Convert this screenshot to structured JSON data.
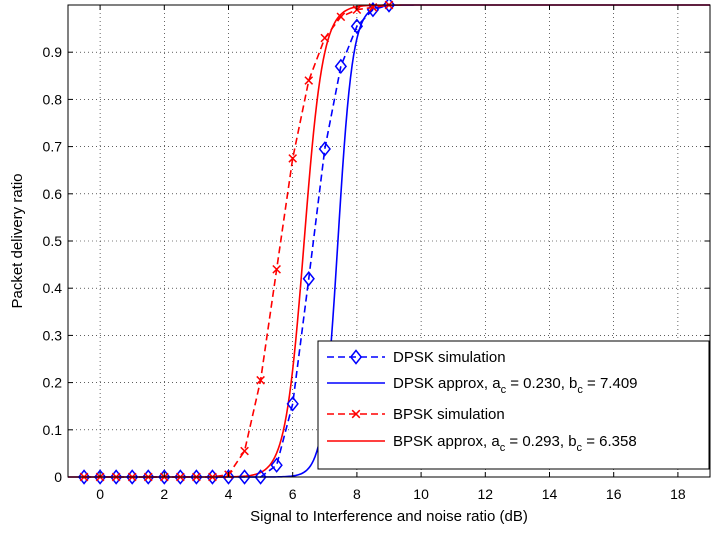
{
  "chart_data": {
    "type": "line",
    "title": "",
    "xlabel": "Signal to Interference and noise ratio (dB)",
    "ylabel": "Packet delivery ratio",
    "xlim": [
      -1,
      19
    ],
    "ylim": [
      0,
      1
    ],
    "xticks": [
      0,
      2,
      4,
      6,
      8,
      10,
      12,
      14,
      16,
      18
    ],
    "yticks": [
      0,
      0.1,
      0.2,
      0.3,
      0.4,
      0.5,
      0.6,
      0.7,
      0.8,
      0.9
    ],
    "ytick_labels": [
      "0",
      "0.1",
      "0.2",
      "0.3",
      "0.4",
      "0.5",
      "0.6",
      "0.7",
      "0.8",
      "0.9"
    ],
    "grid": true,
    "legend_position": "bottom-right",
    "series": [
      {
        "name": "DPSK simulation",
        "color": "#0000ff",
        "line": "dashed",
        "marker": "diamond",
        "x": [
          -0.5,
          0,
          0.5,
          1,
          1.5,
          2,
          2.5,
          3,
          3.5,
          4,
          4.5,
          5,
          5.5,
          6,
          6.5,
          7,
          7.5,
          8,
          8.5,
          9
        ],
        "y": [
          0,
          0,
          0,
          0,
          0,
          0,
          0,
          0,
          0,
          0,
          0,
          0,
          0.025,
          0.155,
          0.42,
          0.695,
          0.87,
          0.955,
          0.99,
          1.0
        ]
      },
      {
        "name": "DPSK approx, a_c = 0.230, b_c = 7.409",
        "label_parts": [
          "DPSK approx, a",
          "c",
          " = 0.230, b",
          "c",
          " = 7.409"
        ],
        "color": "#0000ff",
        "line": "solid",
        "marker": "none",
        "model": "logistic",
        "a": 0.23,
        "b": 7.409
      },
      {
        "name": "BPSK simulation",
        "color": "#ff0000",
        "line": "dashed",
        "marker": "x",
        "x": [
          -0.5,
          0,
          0.5,
          1,
          1.5,
          2,
          2.5,
          3,
          3.5,
          4,
          4.5,
          5,
          5.5,
          6,
          6.5,
          7,
          7.5,
          8,
          8.5,
          9
        ],
        "y": [
          0,
          0,
          0,
          0,
          0,
          0,
          0,
          0,
          0,
          0.005,
          0.055,
          0.205,
          0.44,
          0.675,
          0.84,
          0.93,
          0.975,
          0.99,
          0.995,
          1.0
        ]
      },
      {
        "name": "BPSK approx, a_c = 0.293, b_c = 6.358",
        "label_parts": [
          "BPSK approx, a",
          "c",
          " = 0.293, b",
          "c",
          " = 6.358"
        ],
        "color": "#ff0000",
        "line": "solid",
        "marker": "none",
        "model": "logistic",
        "a": 0.293,
        "b": 6.358
      }
    ]
  }
}
